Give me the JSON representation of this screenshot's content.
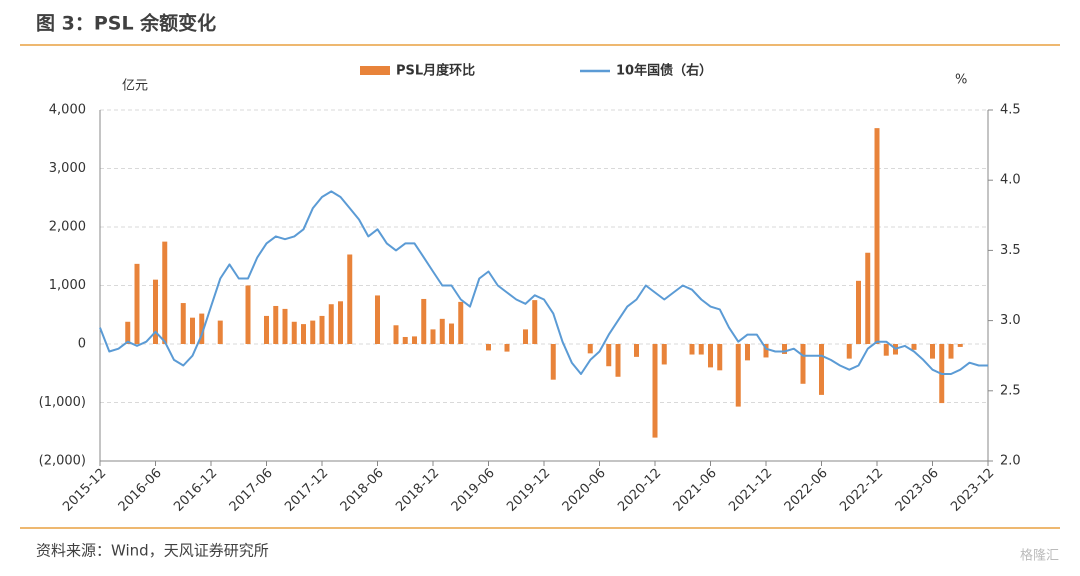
{
  "chart_data": {
    "type": "combo",
    "title": "图 3：PSL 余额变化",
    "source": "资料来源：Wind，天风证券研究所",
    "watermark": "格隆汇",
    "y_label": "亿元",
    "y2_label": "%",
    "categories": [
      "2015-12",
      null,
      null,
      null,
      null,
      null,
      "2016-06",
      null,
      null,
      null,
      null,
      null,
      "2016-12",
      null,
      null,
      null,
      null,
      null,
      "2017-06",
      null,
      null,
      null,
      null,
      null,
      "2017-12",
      null,
      null,
      null,
      null,
      null,
      "2018-06",
      null,
      null,
      null,
      null,
      null,
      "2018-12",
      null,
      null,
      null,
      null,
      null,
      "2019-06",
      null,
      null,
      null,
      null,
      null,
      "2019-12",
      null,
      null,
      null,
      null,
      null,
      "2020-06",
      null,
      null,
      null,
      null,
      null,
      "2020-12",
      null,
      null,
      null,
      null,
      null,
      "2021-06",
      null,
      null,
      null,
      null,
      null,
      "2021-12",
      null,
      null,
      null,
      null,
      null,
      "2022-06",
      null,
      null,
      null,
      null,
      null,
      "2022-12",
      null,
      null,
      null,
      null,
      null,
      "2023-06",
      null,
      null,
      null,
      null,
      null,
      "2023-12"
    ],
    "series": [
      {
        "name": "PSL月度环比",
        "type": "bar",
        "color": "#e8833a",
        "values": [
          0,
          0,
          0,
          380,
          1370,
          0,
          1100,
          1750,
          0,
          700,
          450,
          520,
          0,
          400,
          0,
          0,
          1000,
          0,
          480,
          650,
          600,
          380,
          340,
          400,
          480,
          680,
          730,
          1530,
          0,
          0,
          830,
          0,
          320,
          120,
          130,
          770,
          250,
          430,
          350,
          720,
          0,
          0,
          -110,
          0,
          -130,
          0,
          250,
          750,
          0,
          -610,
          0,
          0,
          0,
          -160,
          0,
          -380,
          -560,
          0,
          -220,
          0,
          -1600,
          -350,
          0,
          0,
          -180,
          -180,
          -400,
          -450,
          0,
          -1070,
          -280,
          0,
          -230,
          0,
          -170,
          0,
          -680,
          0,
          -870,
          0,
          0,
          -250,
          1080,
          1560,
          3690,
          -200,
          -180,
          0,
          -100,
          0,
          -250,
          -1010,
          -250,
          -50,
          0,
          0,
          0
        ]
      },
      {
        "name": "10年国债（右）",
        "type": "line",
        "color": "#5b9bd5",
        "axis": "y2",
        "values": [
          2.95,
          2.78,
          2.8,
          2.85,
          2.82,
          2.85,
          2.92,
          2.85,
          2.72,
          2.68,
          2.75,
          2.9,
          3.1,
          3.3,
          3.4,
          3.3,
          3.3,
          3.45,
          3.55,
          3.6,
          3.58,
          3.6,
          3.65,
          3.8,
          3.88,
          3.92,
          3.88,
          3.8,
          3.72,
          3.6,
          3.65,
          3.55,
          3.5,
          3.55,
          3.55,
          3.45,
          3.35,
          3.25,
          3.25,
          3.15,
          3.1,
          3.3,
          3.35,
          3.25,
          3.2,
          3.15,
          3.12,
          3.18,
          3.15,
          3.05,
          2.85,
          2.7,
          2.62,
          2.72,
          2.78,
          2.9,
          3.0,
          3.1,
          3.15,
          3.25,
          3.2,
          3.15,
          3.2,
          3.25,
          3.22,
          3.15,
          3.1,
          3.08,
          2.95,
          2.85,
          2.9,
          2.9,
          2.8,
          2.78,
          2.78,
          2.8,
          2.75,
          2.75,
          2.75,
          2.72,
          2.68,
          2.65,
          2.68,
          2.8,
          2.85,
          2.85,
          2.8,
          2.82,
          2.78,
          2.72,
          2.65,
          2.62,
          2.62,
          2.65,
          2.7,
          2.68,
          2.68
        ]
      }
    ],
    "ylim": [
      -2000,
      4000
    ],
    "yticks": [
      {
        "value": -2000,
        "label": "(2,000)"
      },
      {
        "value": -1000,
        "label": "(1,000)"
      },
      0,
      {
        "value": 1000,
        "label": "1,000"
      },
      {
        "value": 2000,
        "label": "2,000"
      },
      {
        "value": 3000,
        "label": "3,000"
      },
      {
        "value": 4000,
        "label": "4,000"
      }
    ],
    "y2lim": [
      2.0,
      4.5
    ],
    "y2ticks": [
      {
        "value": 2.0,
        "label": "2.0"
      },
      2.5,
      {
        "value": 3.0,
        "label": "3.0"
      },
      3.5,
      {
        "value": 4.0,
        "label": "4.0"
      },
      4.5
    ],
    "grid": true
  }
}
